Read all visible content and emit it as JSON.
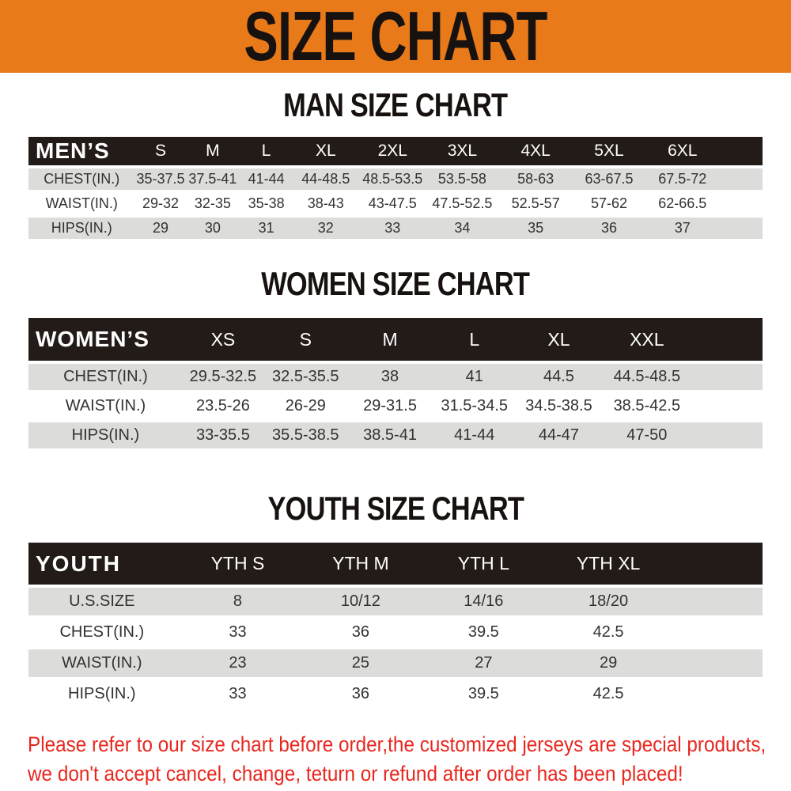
{
  "banner": {
    "title": "SIZE CHART"
  },
  "colors": {
    "banner_orange": "#e87a1a",
    "table_header_black": "#221b17",
    "row_stripe_gray": "#dcdcda",
    "notice_red": "#e8271e"
  },
  "sections": {
    "men": {
      "heading": "MAN SIZE CHART",
      "table": {
        "header": [
          "MEN’S",
          "S",
          "M",
          "L",
          "XL",
          "2XL",
          "3XL",
          "4XL",
          "5XL",
          "6XL"
        ],
        "rows": [
          {
            "label": "CHEST(IN.)",
            "values": [
              "35-37.5",
              "37.5-41",
              "41-44",
              "44-48.5",
              "48.5-53.5",
              "53.5-58",
              "58-63",
              "63-67.5",
              "67.5-72"
            ]
          },
          {
            "label": "WAIST(IN.)",
            "values": [
              "29-32",
              "32-35",
              "35-38",
              "38-43",
              "43-47.5",
              "47.5-52.5",
              "52.5-57",
              "57-62",
              "62-66.5"
            ]
          },
          {
            "label": "HIPS(IN.)",
            "values": [
              "29",
              "30",
              "31",
              "32",
              "33",
              "34",
              "35",
              "36",
              "37"
            ]
          }
        ]
      }
    },
    "women": {
      "heading": "WOMEN SIZE CHART",
      "table": {
        "header": [
          "WOMEN’S",
          "XS",
          "S",
          "M",
          "L",
          "XL",
          "XXL"
        ],
        "rows": [
          {
            "label": "CHEST(IN.)",
            "values": [
              "29.5-32.5",
              "32.5-35.5",
              "38",
              "41",
              "44.5",
              "44.5-48.5"
            ]
          },
          {
            "label": "WAIST(IN.)",
            "values": [
              "23.5-26",
              "26-29",
              "29-31.5",
              "31.5-34.5",
              "34.5-38.5",
              "38.5-42.5"
            ]
          },
          {
            "label": "HIPS(IN.)",
            "values": [
              "33-35.5",
              "35.5-38.5",
              "38.5-41",
              "41-44",
              "44-47",
              "47-50"
            ]
          }
        ]
      }
    },
    "youth": {
      "heading": "YOUTH SIZE CHART",
      "table": {
        "header": [
          "YOUTH",
          "YTH S",
          "YTH M",
          "YTH L",
          "YTH XL"
        ],
        "rows": [
          {
            "label": "U.S.SIZE",
            "values": [
              "8",
              "10/12",
              "14/16",
              "18/20"
            ]
          },
          {
            "label": "CHEST(IN.)",
            "values": [
              "33",
              "36",
              "39.5",
              "42.5"
            ]
          },
          {
            "label": "WAIST(IN.)",
            "values": [
              "23",
              "25",
              "27",
              "29"
            ]
          },
          {
            "label": "HIPS(IN.)",
            "values": [
              "33",
              "36",
              "39.5",
              "42.5"
            ]
          }
        ]
      }
    }
  },
  "notice": {
    "line1": "Please refer to our size chart before order,the customized jerseys are special products,",
    "line2": "we don't accept cancel, change, teturn or refund after order has been placed!"
  }
}
